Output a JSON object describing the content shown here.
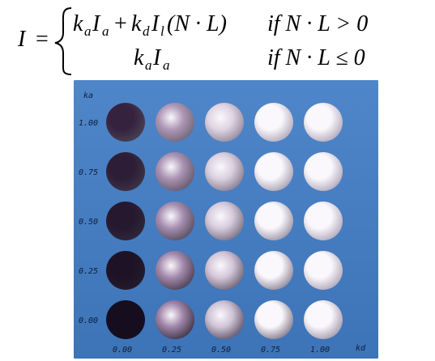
{
  "equation": {
    "lhs": "I",
    "equals": "=",
    "case1_expr_parts": {
      "k1": "k",
      "a1": "a",
      "I1": "I",
      "a2": "a",
      "plus": "+",
      "k2": "k",
      "d": "d",
      "I2": "I",
      "l": "l",
      "paren": "(N · L)"
    },
    "case1_condition": "if  N · L > 0",
    "case2_expr_parts": {
      "k": "k",
      "a1": "a",
      "I": "I",
      "a2": "a"
    },
    "case2_condition": "if  N · L ≤ 0"
  },
  "figure": {
    "y_axis_title": "ka",
    "x_axis_title": "kd",
    "y_labels": [
      "1.00",
      "0.75",
      "0.50",
      "0.25",
      "0.00"
    ],
    "x_labels": [
      "0.00",
      "0.25",
      "0.50",
      "0.75",
      "1.00"
    ],
    "ka_values": [
      1.0,
      0.75,
      0.5,
      0.25,
      0.0
    ],
    "kd_values": [
      0.0,
      0.25,
      0.5,
      0.75,
      1.0
    ],
    "colors": {
      "background_top": "#4f86c9",
      "background_bottom": "#3d73b7",
      "sphere_tint": "#3a2450"
    }
  }
}
